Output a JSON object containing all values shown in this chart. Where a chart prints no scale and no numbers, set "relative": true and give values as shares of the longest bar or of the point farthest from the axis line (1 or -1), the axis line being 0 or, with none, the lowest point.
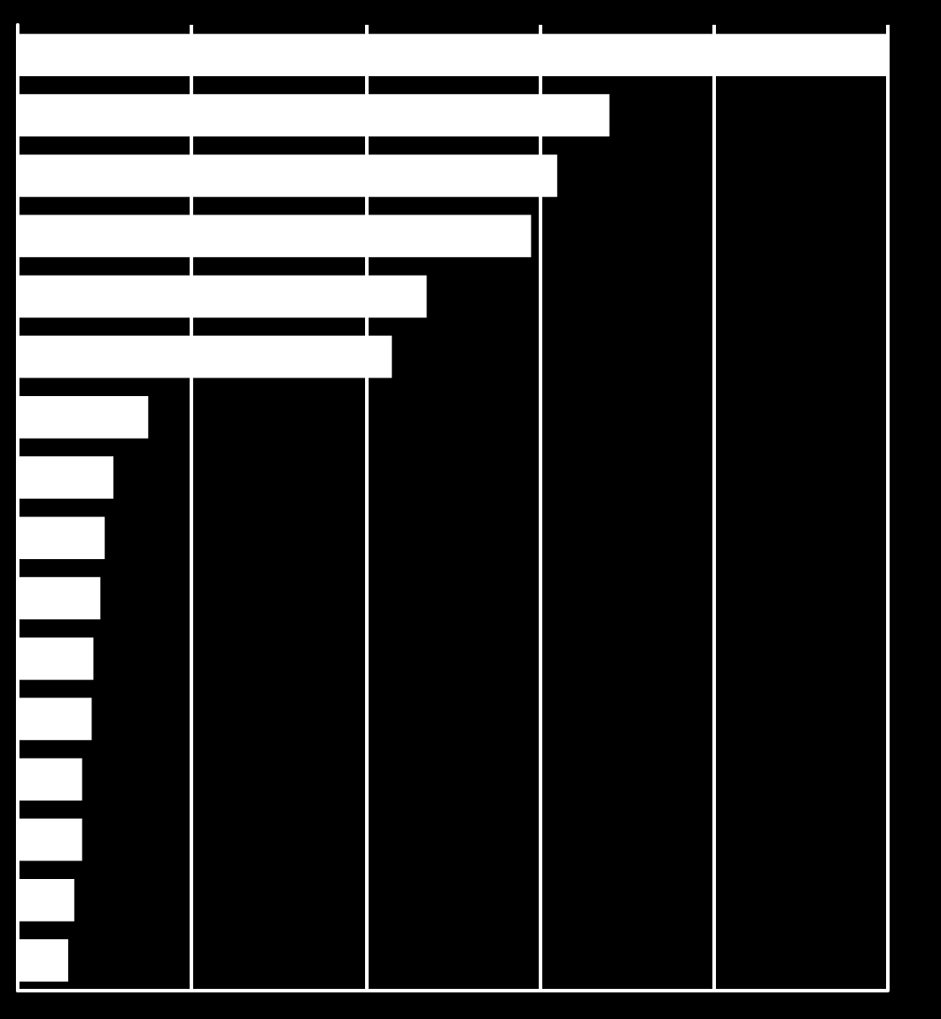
{
  "chart_data": {
    "type": "bar",
    "orientation": "horizontal",
    "relative": true,
    "categories": [
      null,
      null,
      null,
      null,
      null,
      null,
      null,
      null,
      null,
      null,
      null,
      null,
      null,
      null,
      null,
      null
    ],
    "values": [
      1,
      0.68,
      0.62,
      0.59,
      0.47,
      0.43,
      0.15,
      0.11,
      0.1,
      0.095,
      0.087,
      0.085,
      0.074,
      0.074,
      0.065,
      0.058
    ],
    "color": "#ffffff",
    "grid": "x",
    "tick_labels": false
  }
}
